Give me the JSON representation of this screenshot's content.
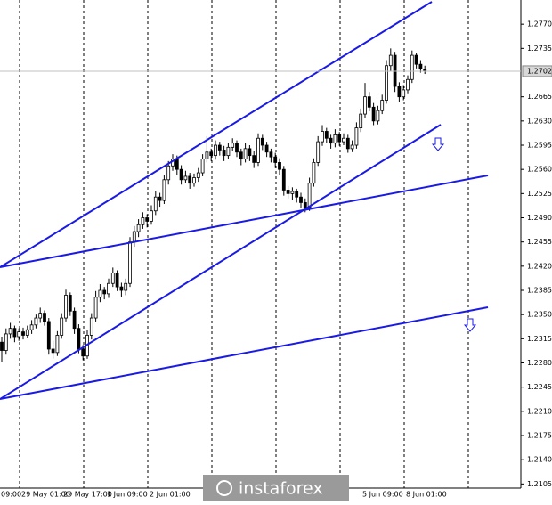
{
  "chart_data": {
    "type": "candlestick",
    "candles": [
      [
        1.231,
        1.2318,
        1.2282,
        1.2298
      ],
      [
        1.2298,
        1.233,
        1.2292,
        1.2322
      ],
      [
        1.2322,
        1.2338,
        1.2315,
        1.233
      ],
      [
        1.233,
        1.2334,
        1.231,
        1.2318
      ],
      [
        1.2318,
        1.233,
        1.2312,
        1.2325
      ],
      [
        1.2325,
        1.2331,
        1.2314,
        1.232
      ],
      [
        1.232,
        1.2334,
        1.2316,
        1.2328
      ],
      [
        1.2328,
        1.2342,
        1.2322,
        1.2335
      ],
      [
        1.2335,
        1.235,
        1.233,
        1.2345
      ],
      [
        1.2345,
        1.236,
        1.2338,
        1.2352
      ],
      [
        1.2352,
        1.2356,
        1.2334,
        1.234
      ],
      [
        1.234,
        1.2345,
        1.2292,
        1.23
      ],
      [
        1.23,
        1.2312,
        1.2286,
        1.2295
      ],
      [
        1.2295,
        1.2326,
        1.229,
        1.232
      ],
      [
        1.232,
        1.2352,
        1.2315,
        1.2345
      ],
      [
        1.2345,
        1.2386,
        1.234,
        1.2378
      ],
      [
        1.2378,
        1.2382,
        1.2348,
        1.2355
      ],
      [
        1.2355,
        1.236,
        1.2322,
        1.233
      ],
      [
        1.233,
        1.2336,
        1.2294,
        1.23
      ],
      [
        1.23,
        1.2306,
        1.2284,
        1.229
      ],
      [
        1.229,
        1.2328,
        1.2286,
        1.232
      ],
      [
        1.232,
        1.2352,
        1.2314,
        1.2345
      ],
      [
        1.2345,
        1.2384,
        1.234,
        1.2375
      ],
      [
        1.2375,
        1.2394,
        1.2368,
        1.2385
      ],
      [
        1.2385,
        1.239,
        1.2372,
        1.238
      ],
      [
        1.238,
        1.2402,
        1.2374,
        1.2395
      ],
      [
        1.2395,
        1.2418,
        1.239,
        1.241
      ],
      [
        1.241,
        1.2414,
        1.2384,
        1.239
      ],
      [
        1.239,
        1.2396,
        1.2376,
        1.2385
      ],
      [
        1.2385,
        1.2402,
        1.2378,
        1.2395
      ],
      [
        1.2395,
        1.2462,
        1.239,
        1.2455
      ],
      [
        1.2455,
        1.2478,
        1.2448,
        1.247
      ],
      [
        1.247,
        1.2488,
        1.2462,
        1.248
      ],
      [
        1.248,
        1.2498,
        1.2474,
        1.249
      ],
      [
        1.249,
        1.2495,
        1.2476,
        1.2485
      ],
      [
        1.2485,
        1.2508,
        1.248,
        1.25
      ],
      [
        1.25,
        1.2528,
        1.2494,
        1.252
      ],
      [
        1.252,
        1.2526,
        1.2506,
        1.2515
      ],
      [
        1.2515,
        1.2552,
        1.251,
        1.2545
      ],
      [
        1.2545,
        1.2572,
        1.2538,
        1.2565
      ],
      [
        1.2565,
        1.2582,
        1.2558,
        1.2575
      ],
      [
        1.2575,
        1.258,
        1.2552,
        1.256
      ],
      [
        1.256,
        1.2566,
        1.2538,
        1.2545
      ],
      [
        1.2545,
        1.2558,
        1.254,
        1.255
      ],
      [
        1.255,
        1.2555,
        1.2532,
        1.254
      ],
      [
        1.254,
        1.2554,
        1.2535,
        1.2548
      ],
      [
        1.2548,
        1.2562,
        1.2542,
        1.2555
      ],
      [
        1.2555,
        1.2582,
        1.255,
        1.2575
      ],
      [
        1.2575,
        1.2608,
        1.257,
        1.2585
      ],
      [
        1.2585,
        1.259,
        1.2572,
        1.258
      ],
      [
        1.258,
        1.2602,
        1.2574,
        1.2595
      ],
      [
        1.2595,
        1.26,
        1.258,
        1.2588
      ],
      [
        1.2588,
        1.2594,
        1.2572,
        1.258
      ],
      [
        1.258,
        1.2598,
        1.2575,
        1.2592
      ],
      [
        1.2592,
        1.2605,
        1.2586,
        1.2598
      ],
      [
        1.2598,
        1.2602,
        1.2578,
        1.2585
      ],
      [
        1.2585,
        1.259,
        1.2566,
        1.2575
      ],
      [
        1.2575,
        1.2598,
        1.257,
        1.259
      ],
      [
        1.259,
        1.2595,
        1.2572,
        1.258
      ],
      [
        1.258,
        1.2586,
        1.2562,
        1.257
      ],
      [
        1.257,
        1.2612,
        1.2565,
        1.2605
      ],
      [
        1.2605,
        1.261,
        1.2588,
        1.2595
      ],
      [
        1.2595,
        1.26,
        1.2578,
        1.2585
      ],
      [
        1.2585,
        1.259,
        1.257,
        1.2578
      ],
      [
        1.2578,
        1.2584,
        1.2562,
        1.257
      ],
      [
        1.257,
        1.2576,
        1.2552,
        1.256
      ],
      [
        1.256,
        1.2565,
        1.2522,
        1.253
      ],
      [
        1.253,
        1.2536,
        1.2518,
        1.2525
      ],
      [
        1.2525,
        1.2534,
        1.2516,
        1.2528
      ],
      [
        1.2528,
        1.2532,
        1.2512,
        1.252
      ],
      [
        1.252,
        1.2526,
        1.2504,
        1.2512
      ],
      [
        1.2512,
        1.2518,
        1.2498,
        1.2505
      ],
      [
        1.2505,
        1.2548,
        1.25,
        1.254
      ],
      [
        1.254,
        1.2576,
        1.2535,
        1.257
      ],
      [
        1.257,
        1.2608,
        1.2565,
        1.26
      ],
      [
        1.26,
        1.2624,
        1.2594,
        1.2615
      ],
      [
        1.2615,
        1.262,
        1.2598,
        1.2605
      ],
      [
        1.2605,
        1.261,
        1.259,
        1.2598
      ],
      [
        1.2598,
        1.2618,
        1.2592,
        1.261
      ],
      [
        1.261,
        1.2614,
        1.2594,
        1.26
      ],
      [
        1.26,
        1.2612,
        1.2595,
        1.2605
      ],
      [
        1.2605,
        1.261,
        1.2584,
        1.259
      ],
      [
        1.259,
        1.2602,
        1.2585,
        1.2595
      ],
      [
        1.2595,
        1.2628,
        1.259,
        1.262
      ],
      [
        1.262,
        1.2648,
        1.2614,
        1.264
      ],
      [
        1.264,
        1.2685,
        1.2634,
        1.2665
      ],
      [
        1.2665,
        1.2672,
        1.2644,
        1.265
      ],
      [
        1.265,
        1.2656,
        1.2624,
        1.263
      ],
      [
        1.263,
        1.2652,
        1.2625,
        1.2645
      ],
      [
        1.2645,
        1.2668,
        1.264,
        1.266
      ],
      [
        1.266,
        1.2718,
        1.2655,
        1.271
      ],
      [
        1.271,
        1.2735,
        1.2702,
        1.2725
      ],
      [
        1.2725,
        1.273,
        1.2672,
        1.268
      ],
      [
        1.268,
        1.2686,
        1.2658,
        1.2665
      ],
      [
        1.2665,
        1.2682,
        1.266,
        1.2675
      ],
      [
        1.2675,
        1.2696,
        1.267,
        1.269
      ],
      [
        1.269,
        1.2732,
        1.2685,
        1.2725
      ],
      [
        1.2725,
        1.2728,
        1.2706,
        1.2712
      ],
      [
        1.2712,
        1.2718,
        1.27,
        1.2705
      ],
      [
        1.2705,
        1.271,
        1.2698,
        1.2702
      ]
    ],
    "ylim": [
      1.2099,
      1.2805
    ],
    "yticks": [
      {
        "value": 1.277,
        "label": "1.2770"
      },
      1.2735,
      1.2665,
      {
        "value": 1.263,
        "label": "1.2630"
      },
      1.2595,
      {
        "value": 1.256,
        "label": "1.2560"
      },
      1.2525,
      {
        "value": 1.249,
        "label": "1.2490"
      },
      1.2455,
      {
        "value": 1.242,
        "label": "1.2420"
      },
      1.2385,
      {
        "value": 1.235,
        "label": "1.2350"
      },
      1.2315,
      {
        "value": 1.228,
        "label": "1.2280"
      },
      1.2245,
      {
        "value": 1.221,
        "label": "1.2210"
      },
      1.2175,
      {
        "value": 1.214,
        "label": "1.2140"
      },
      1.2105
    ],
    "current_price": 1.2702,
    "x_labels": [
      "09:00",
      "29 May 01:00",
      "29 May 17:00",
      "1 Jun 09:00",
      "2 Jun 01:00",
      "5 Jun 09:00",
      "8 Jun 01:00"
    ],
    "watermark": "instaforex"
  }
}
